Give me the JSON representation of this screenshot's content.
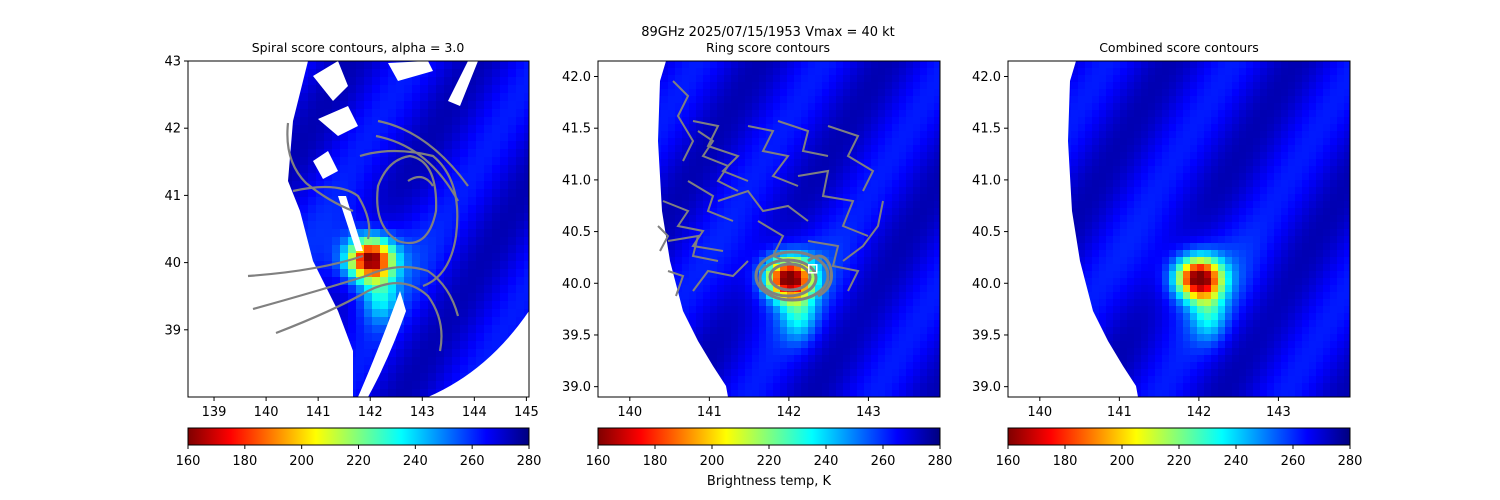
{
  "suptitle": "89GHz  2025/07/15/1953    Vmax = 40 kt",
  "colormap": {
    "name": "jet_r",
    "stops": [
      "#7f0000",
      "#ff0000",
      "#ff7f00",
      "#ffff00",
      "#7fff7f",
      "#00ffff",
      "#007fff",
      "#0000ff",
      "#00007f"
    ],
    "vmin": 160,
    "vmax": 280,
    "ticks": [
      "160",
      "180",
      "200",
      "220",
      "240",
      "260",
      "280"
    ],
    "label": "Brightness temp, K"
  },
  "chart_data": [
    {
      "type": "heatmap",
      "title": "Spiral score contours, alpha =  3.0",
      "xlim": [
        138.5,
        145.05
      ],
      "ylim": [
        38.0,
        43.0
      ],
      "x_ticks": [
        "139",
        "140",
        "141",
        "142",
        "143",
        "144",
        "145"
      ],
      "y_ticks": [
        "39",
        "40",
        "41",
        "42",
        "43"
      ],
      "field": {
        "background_k": 268,
        "warm_spot": {
          "lon": 142.0,
          "lat": 40.05,
          "min_k": 165
        }
      },
      "contour_color": "#808080",
      "has_colorbar_label": false
    },
    {
      "type": "heatmap",
      "title": "Ring score contours",
      "xlim": [
        139.6,
        143.9
      ],
      "ylim": [
        38.9,
        42.15
      ],
      "x_ticks": [
        "140",
        "141",
        "142",
        "143"
      ],
      "y_ticks": [
        "39.0",
        "39.5",
        "40.0",
        "40.5",
        "41.0",
        "41.5",
        "42.0"
      ],
      "field": {
        "background_k": 268,
        "warm_spot": {
          "lon": 142.0,
          "lat": 40.05,
          "min_k": 165
        }
      },
      "marker": {
        "lon": 142.3,
        "lat": 40.14,
        "shape": "square"
      },
      "contour_color": "#808080",
      "has_colorbar_label": true
    },
    {
      "type": "heatmap",
      "title": "Combined score contours",
      "xlim": [
        139.6,
        143.9
      ],
      "ylim": [
        38.9,
        42.15
      ],
      "x_ticks": [
        "140",
        "141",
        "142",
        "143"
      ],
      "y_ticks": [
        "39.0",
        "39.5",
        "40.0",
        "40.5",
        "41.0",
        "41.5",
        "42.0"
      ],
      "field": {
        "background_k": 268,
        "warm_spot": {
          "lon": 142.0,
          "lat": 40.05,
          "min_k": 165
        }
      },
      "contour_color": "#808080",
      "has_colorbar_label": false
    }
  ]
}
